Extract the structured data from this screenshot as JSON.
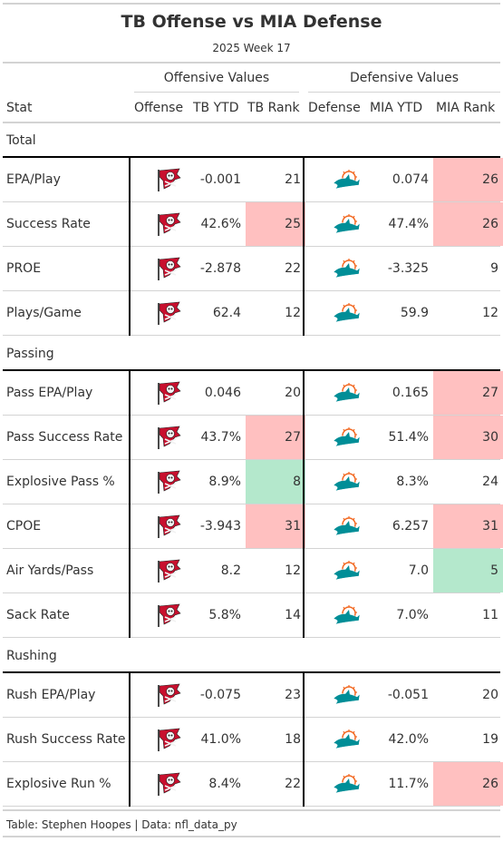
{
  "title": "TB Offense vs MIA Defense",
  "subtitle": "2025 Week 17",
  "spanners": {
    "offense": "Offensive Values",
    "defense": "Defensive Values"
  },
  "columns": {
    "stat": "Stat",
    "offense": "Offense",
    "tb_ytd": "TB YTD",
    "tb_rank": "TB Rank",
    "defense": "Defense",
    "mia_ytd": "MIA YTD",
    "mia_rank": "MIA Rank"
  },
  "footer": "Table: Stephen Hoopes | Data: nfl_data_py",
  "colors": {
    "bad_rank": "#ffc0c0",
    "good_rank": "#b4e8cc",
    "tb_red": "#c8102e",
    "tb_pewter": "#4a4a4a",
    "mia_aqua": "#008e97",
    "mia_orange": "#f26a24"
  },
  "icons": {
    "offense": "buccaneers-flag-logo",
    "defense": "dolphins-logo"
  },
  "chart_data": {
    "type": "table",
    "groups": [
      {
        "name": "Total",
        "rows": [
          {
            "stat": "EPA/Play",
            "tb_ytd": "-0.001",
            "tb_rank": 21,
            "mia_ytd": "0.074",
            "mia_rank": 26
          },
          {
            "stat": "Success Rate",
            "tb_ytd": "42.6%",
            "tb_rank": 25,
            "mia_ytd": "47.4%",
            "mia_rank": 26
          },
          {
            "stat": "PROE",
            "tb_ytd": "-2.878",
            "tb_rank": 22,
            "mia_ytd": "-3.325",
            "mia_rank": 9
          },
          {
            "stat": "Plays/Game",
            "tb_ytd": "62.4",
            "tb_rank": 12,
            "mia_ytd": "59.9",
            "mia_rank": 12
          }
        ]
      },
      {
        "name": "Passing",
        "rows": [
          {
            "stat": "Pass EPA/Play",
            "tb_ytd": "0.046",
            "tb_rank": 20,
            "mia_ytd": "0.165",
            "mia_rank": 27
          },
          {
            "stat": "Pass Success Rate",
            "tb_ytd": "43.7%",
            "tb_rank": 27,
            "mia_ytd": "51.4%",
            "mia_rank": 30
          },
          {
            "stat": "Explosive Pass %",
            "tb_ytd": "8.9%",
            "tb_rank": 8,
            "mia_ytd": "8.3%",
            "mia_rank": 24
          },
          {
            "stat": "CPOE",
            "tb_ytd": "-3.943",
            "tb_rank": 31,
            "mia_ytd": "6.257",
            "mia_rank": 31
          },
          {
            "stat": "Air Yards/Pass",
            "tb_ytd": "8.2",
            "tb_rank": 12,
            "mia_ytd": "7.0",
            "mia_rank": 5
          },
          {
            "stat": "Sack Rate",
            "tb_ytd": "5.8%",
            "tb_rank": 14,
            "mia_ytd": "7.0%",
            "mia_rank": 11
          }
        ]
      },
      {
        "name": "Rushing",
        "rows": [
          {
            "stat": "Rush EPA/Play",
            "tb_ytd": "-0.075",
            "tb_rank": 23,
            "mia_ytd": "-0.051",
            "mia_rank": 20
          },
          {
            "stat": "Rush Success Rate",
            "tb_ytd": "41.0%",
            "tb_rank": 18,
            "mia_ytd": "42.0%",
            "mia_rank": 19
          },
          {
            "stat": "Explosive Run %",
            "tb_ytd": "8.4%",
            "tb_rank": 22,
            "mia_ytd": "11.7%",
            "mia_rank": 26
          }
        ]
      }
    ]
  }
}
